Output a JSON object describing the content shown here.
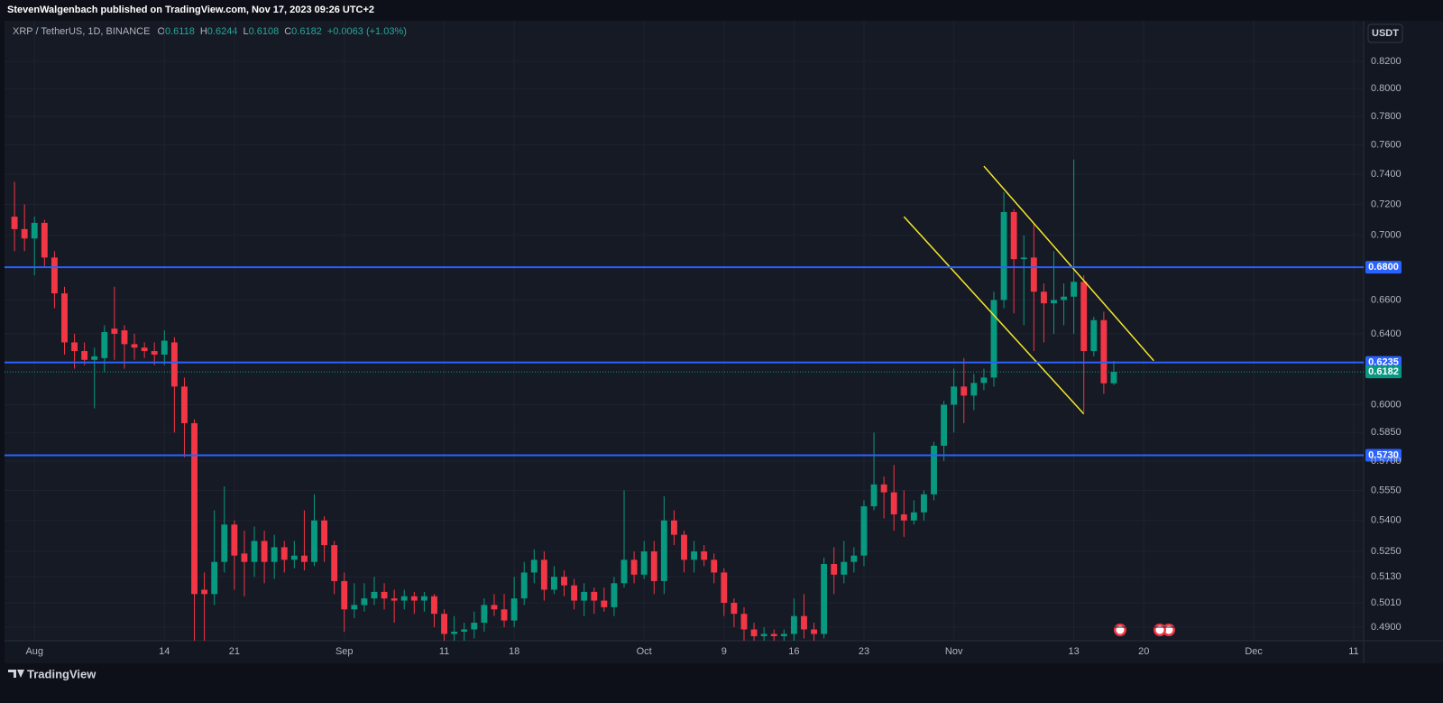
{
  "header": {
    "publisher": "StevenWalgenbach published on TradingView.com, Nov 17, 2023 09:26 UTC+2"
  },
  "chart_data": {
    "type": "candlestick",
    "symbol": "XRP / TetherUS, 1D, BINANCE",
    "ohlc_labels": [
      "O",
      "H",
      "L",
      "C"
    ],
    "change": "+0.0063 (+1.03%)",
    "currency": "USDT",
    "x": [
      "2023-07-30",
      "2023-07-31",
      "2023-08-01",
      "2023-08-02",
      "2023-08-03",
      "2023-08-04",
      "2023-08-05",
      "2023-08-06",
      "2023-08-07",
      "2023-08-08",
      "2023-08-09",
      "2023-08-10",
      "2023-08-11",
      "2023-08-12",
      "2023-08-13",
      "2023-08-14",
      "2023-08-15",
      "2023-08-16",
      "2023-08-17",
      "2023-08-18",
      "2023-08-19",
      "2023-08-20",
      "2023-08-21",
      "2023-08-22",
      "2023-08-23",
      "2023-08-24",
      "2023-08-25",
      "2023-08-26",
      "2023-08-27",
      "2023-08-28",
      "2023-08-29",
      "2023-08-30",
      "2023-08-31",
      "2023-09-01",
      "2023-09-02",
      "2023-09-03",
      "2023-09-04",
      "2023-09-05",
      "2023-09-06",
      "2023-09-07",
      "2023-09-08",
      "2023-09-09",
      "2023-09-10",
      "2023-09-11",
      "2023-09-12",
      "2023-09-13",
      "2023-09-14",
      "2023-09-15",
      "2023-09-16",
      "2023-09-17",
      "2023-09-18",
      "2023-09-19",
      "2023-09-20",
      "2023-09-21",
      "2023-09-22",
      "2023-09-23",
      "2023-09-24",
      "2023-09-25",
      "2023-09-26",
      "2023-09-27",
      "2023-09-28",
      "2023-09-29",
      "2023-09-30",
      "2023-10-01",
      "2023-10-02",
      "2023-10-03",
      "2023-10-04",
      "2023-10-05",
      "2023-10-06",
      "2023-10-07",
      "2023-10-08",
      "2023-10-09",
      "2023-10-10",
      "2023-10-11",
      "2023-10-12",
      "2023-10-13",
      "2023-10-14",
      "2023-10-15",
      "2023-10-16",
      "2023-10-17",
      "2023-10-18",
      "2023-10-19",
      "2023-10-20",
      "2023-10-21",
      "2023-10-22",
      "2023-10-23",
      "2023-10-24",
      "2023-10-25",
      "2023-10-26",
      "2023-10-27",
      "2023-10-28",
      "2023-10-29",
      "2023-10-30",
      "2023-10-31",
      "2023-11-01",
      "2023-11-02",
      "2023-11-03",
      "2023-11-04",
      "2023-11-05",
      "2023-11-06",
      "2023-11-07",
      "2023-11-08",
      "2023-11-09",
      "2023-11-10",
      "2023-11-11",
      "2023-11-12",
      "2023-11-13",
      "2023-11-14",
      "2023-11-15",
      "2023-11-16",
      "2023-11-17"
    ],
    "open": [
      0.712,
      0.704,
      0.698,
      0.708,
      0.686,
      0.664,
      0.635,
      0.63,
      0.625,
      0.626,
      0.643,
      0.642,
      0.634,
      0.632,
      0.63,
      0.628,
      0.635,
      0.61,
      0.59,
      0.507,
      0.505,
      0.52,
      0.538,
      0.524,
      0.52,
      0.53,
      0.52,
      0.527,
      0.521,
      0.523,
      0.52,
      0.54,
      0.528,
      0.511,
      0.498,
      0.5,
      0.503,
      0.506,
      0.503,
      0.502,
      0.504,
      0.502,
      0.504,
      0.496,
      0.487,
      0.488,
      0.489,
      0.492,
      0.5,
      0.498,
      0.493,
      0.503,
      0.515,
      0.521,
      0.507,
      0.513,
      0.509,
      0.502,
      0.506,
      0.502,
      0.499,
      0.51,
      0.521,
      0.514,
      0.525,
      0.511,
      0.54,
      0.533,
      0.521,
      0.525,
      0.521,
      0.515,
      0.501,
      0.496,
      0.489,
      0.486,
      0.487,
      0.486,
      0.487,
      0.495,
      0.489,
      0.487,
      0.519,
      0.514,
      0.52,
      0.523,
      0.547,
      0.558,
      0.554,
      0.543,
      0.54,
      0.544,
      0.553,
      0.578,
      0.6,
      0.61,
      0.605,
      0.612,
      0.615,
      0.66,
      0.715,
      0.685,
      0.686,
      0.665,
      0.658,
      0.66,
      0.662,
      0.671,
      0.63,
      0.648,
      0.6118
    ],
    "high": [
      0.735,
      0.72,
      0.712,
      0.71,
      0.69,
      0.668,
      0.64,
      0.635,
      0.632,
      0.645,
      0.668,
      0.645,
      0.64,
      0.635,
      0.635,
      0.642,
      0.638,
      0.615,
      0.592,
      0.515,
      0.545,
      0.557,
      0.54,
      0.535,
      0.537,
      0.535,
      0.533,
      0.53,
      0.53,
      0.545,
      0.553,
      0.542,
      0.53,
      0.515,
      0.51,
      0.51,
      0.513,
      0.51,
      0.507,
      0.507,
      0.506,
      0.506,
      0.505,
      0.498,
      0.495,
      0.492,
      0.497,
      0.503,
      0.505,
      0.505,
      0.513,
      0.52,
      0.526,
      0.525,
      0.518,
      0.516,
      0.512,
      0.51,
      0.508,
      0.508,
      0.513,
      0.555,
      0.525,
      0.53,
      0.53,
      0.552,
      0.545,
      0.535,
      0.53,
      0.528,
      0.524,
      0.517,
      0.503,
      0.499,
      0.492,
      0.49,
      0.489,
      0.489,
      0.503,
      0.505,
      0.492,
      0.522,
      0.527,
      0.53,
      0.527,
      0.55,
      0.585,
      0.562,
      0.568,
      0.555,
      0.55,
      0.555,
      0.58,
      0.602,
      0.62,
      0.626,
      0.617,
      0.62,
      0.665,
      0.728,
      0.717,
      0.7,
      0.708,
      0.67,
      0.69,
      0.67,
      0.75,
      0.675,
      0.65,
      0.653,
      0.6244
    ],
    "low": [
      0.69,
      0.69,
      0.675,
      0.68,
      0.655,
      0.628,
      0.62,
      0.622,
      0.598,
      0.618,
      0.625,
      0.62,
      0.625,
      0.626,
      0.622,
      0.622,
      0.585,
      0.572,
      0.47,
      0.47,
      0.5,
      0.515,
      0.507,
      0.504,
      0.513,
      0.51,
      0.512,
      0.515,
      0.517,
      0.516,
      0.518,
      0.52,
      0.505,
      0.488,
      0.494,
      0.497,
      0.5,
      0.498,
      0.492,
      0.498,
      0.496,
      0.497,
      0.49,
      0.475,
      0.48,
      0.482,
      0.485,
      0.488,
      0.495,
      0.49,
      0.49,
      0.5,
      0.51,
      0.502,
      0.505,
      0.504,
      0.498,
      0.495,
      0.496,
      0.497,
      0.495,
      0.508,
      0.51,
      0.512,
      0.505,
      0.505,
      0.528,
      0.515,
      0.515,
      0.518,
      0.51,
      0.495,
      0.49,
      0.483,
      0.482,
      0.48,
      0.482,
      0.482,
      0.482,
      0.485,
      0.482,
      0.485,
      0.505,
      0.51,
      0.515,
      0.518,
      0.545,
      0.541,
      0.535,
      0.532,
      0.538,
      0.54,
      0.55,
      0.57,
      0.585,
      0.59,
      0.597,
      0.608,
      0.61,
      0.655,
      0.652,
      0.645,
      0.63,
      0.635,
      0.64,
      0.645,
      0.64,
      0.596,
      0.627,
      0.606,
      0.6108
    ],
    "close": [
      0.704,
      0.698,
      0.708,
      0.686,
      0.664,
      0.635,
      0.63,
      0.625,
      0.627,
      0.641,
      0.64,
      0.634,
      0.632,
      0.63,
      0.628,
      0.636,
      0.61,
      0.59,
      0.505,
      0.505,
      0.52,
      0.538,
      0.523,
      0.52,
      0.53,
      0.52,
      0.527,
      0.521,
      0.523,
      0.52,
      0.54,
      0.528,
      0.511,
      0.498,
      0.5,
      0.503,
      0.506,
      0.503,
      0.502,
      0.504,
      0.502,
      0.504,
      0.496,
      0.487,
      0.488,
      0.489,
      0.492,
      0.5,
      0.498,
      0.493,
      0.503,
      0.515,
      0.521,
      0.507,
      0.513,
      0.509,
      0.502,
      0.506,
      0.502,
      0.499,
      0.51,
      0.521,
      0.514,
      0.525,
      0.511,
      0.54,
      0.533,
      0.521,
      0.525,
      0.521,
      0.515,
      0.501,
      0.496,
      0.489,
      0.486,
      0.487,
      0.486,
      0.487,
      0.495,
      0.489,
      0.487,
      0.519,
      0.514,
      0.52,
      0.523,
      0.547,
      0.558,
      0.554,
      0.543,
      0.54,
      0.544,
      0.553,
      0.578,
      0.6,
      0.61,
      0.605,
      0.612,
      0.615,
      0.66,
      0.715,
      0.685,
      0.686,
      0.665,
      0.658,
      0.66,
      0.662,
      0.671,
      0.63,
      0.648,
      0.6118,
      0.6182
    ],
    "up_color": "#089981",
    "down_color": "#f23645",
    "log_scale": true,
    "grid": true,
    "ylim": [
      0.484,
      0.851
    ],
    "yticks": [
      {
        "value": 0.49,
        "label": "0.4900"
      },
      {
        "value": 0.501,
        "label": "0.5010"
      },
      {
        "value": 0.513,
        "label": "0.5130"
      },
      {
        "value": 0.525,
        "label": "0.5250"
      },
      {
        "value": 0.54,
        "label": "0.5400"
      },
      {
        "value": 0.555,
        "label": "0.5550"
      },
      {
        "value": 0.57,
        "label": "0.5700"
      },
      {
        "value": 0.585,
        "label": "0.5850"
      },
      {
        "value": 0.6,
        "label": "0.6000"
      },
      {
        "value": 0.64,
        "label": "0.6400"
      },
      {
        "value": 0.66,
        "label": "0.6600"
      },
      {
        "value": 0.7,
        "label": "0.7000"
      },
      {
        "value": 0.72,
        "label": "0.7200"
      },
      {
        "value": 0.74,
        "label": "0.7400"
      },
      {
        "value": 0.76,
        "label": "0.7600"
      },
      {
        "value": 0.78,
        "label": "0.7800"
      },
      {
        "value": 0.8,
        "label": "0.8000"
      },
      {
        "value": 0.82,
        "label": "0.8200"
      }
    ],
    "xlim": [
      "2023-07-29",
      "2023-12-12"
    ],
    "xticks": [
      {
        "value": "2023-08-01",
        "label": "Aug"
      },
      {
        "value": "2023-08-14",
        "label": "14"
      },
      {
        "value": "2023-08-21",
        "label": "21"
      },
      {
        "value": "2023-09-01",
        "label": "Sep"
      },
      {
        "value": "2023-09-11",
        "label": "11"
      },
      {
        "value": "2023-09-18",
        "label": "18"
      },
      {
        "value": "2023-10-01",
        "label": "Oct"
      },
      {
        "value": "2023-10-09",
        "label": "9"
      },
      {
        "value": "2023-10-16",
        "label": "16"
      },
      {
        "value": "2023-10-23",
        "label": "23"
      },
      {
        "value": "2023-11-01",
        "label": "Nov"
      },
      {
        "value": "2023-11-13",
        "label": "13"
      },
      {
        "value": "2023-11-20",
        "label": "20"
      },
      {
        "value": "2023-12-01",
        "label": "Dec"
      },
      {
        "value": "2023-12-11",
        "label": "11"
      }
    ],
    "levels": [
      {
        "value": 0.68,
        "label": "0.6800"
      },
      {
        "value": 0.6235,
        "label": "0.6235"
      },
      {
        "value": 0.573,
        "label": "0.5730"
      }
    ],
    "level_color": "#2962ff",
    "trendlines": [
      {
        "x": [
          "2023-10-27",
          "2023-11-14"
        ],
        "y": [
          0.712,
          0.595
        ]
      },
      {
        "x": [
          "2023-11-04",
          "2023-11-21"
        ],
        "y": [
          0.7455,
          0.6245
        ]
      }
    ],
    "trendline_color": "#f5e72c"
  },
  "footer": {
    "brand": "TradingView"
  }
}
